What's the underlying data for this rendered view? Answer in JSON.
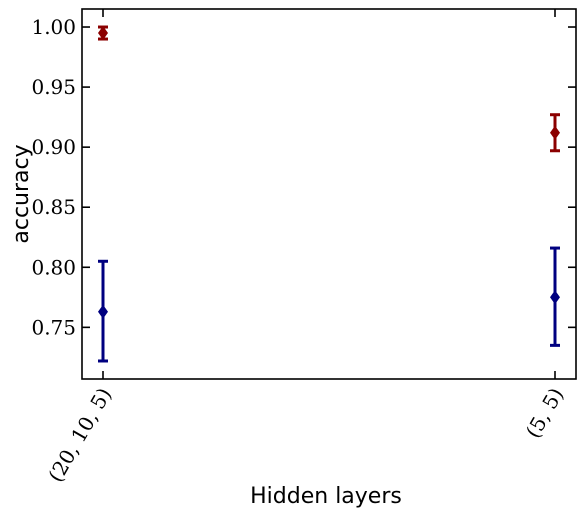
{
  "chart_data": {
    "type": "scatter",
    "title": "",
    "xlabel": "Hidden layers",
    "ylabel": "accuracy",
    "categories": [
      "(20, 10, 5)",
      "(5, 5)"
    ],
    "ylim": [
      0.707,
      1.015
    ],
    "yticks": [
      0.75,
      0.8,
      0.85,
      0.9,
      0.95,
      1.0
    ],
    "ytick_labels": [
      "0.75",
      "0.80",
      "0.85",
      "0.90",
      "0.95",
      "1.00"
    ],
    "grid": false,
    "legend": "none",
    "marker": "diamond",
    "series": [
      {
        "color": "#8b0000",
        "values": [
          0.995,
          0.912
        ],
        "error_low": [
          0.99,
          0.897
        ],
        "error_high": [
          1.0,
          0.927
        ]
      },
      {
        "color": "#000080",
        "values": [
          0.763,
          0.775
        ],
        "error_low": [
          0.722,
          0.735
        ],
        "error_high": [
          0.805,
          0.816
        ]
      }
    ]
  }
}
